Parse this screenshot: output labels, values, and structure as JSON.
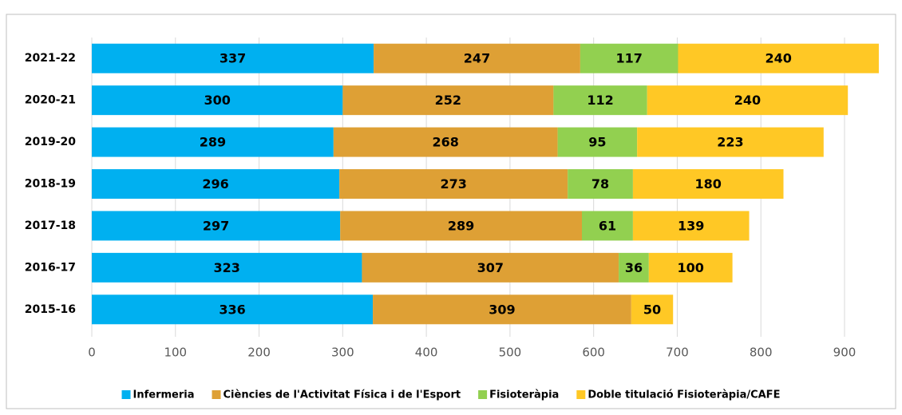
{
  "chart_data": {
    "type": "stacked-bar-horizontal",
    "categories": [
      "2021-22",
      "2020-21",
      "2019-20",
      "2018-19",
      "2017-18",
      "2016-17",
      "2015-16"
    ],
    "series": [
      {
        "name": "Infermeria",
        "color": "#00b0f0",
        "values": [
          337,
          300,
          289,
          296,
          297,
          323,
          336
        ]
      },
      {
        "name": "Ciències de l'Activitat Física i de l'Esport",
        "color": "#dea035",
        "values": [
          247,
          252,
          268,
          273,
          289,
          307,
          309
        ]
      },
      {
        "name": "Fisioteràpia",
        "color": "#92d050",
        "values": [
          117,
          112,
          95,
          78,
          61,
          36,
          null
        ]
      },
      {
        "name": "Doble titulació Fisioteràpia/CAFE",
        "color": "#ffc825",
        "values": [
          240,
          240,
          223,
          180,
          139,
          100,
          50
        ]
      }
    ],
    "xlim": [
      0,
      900
    ],
    "xticks": [
      0,
      100,
      200,
      300,
      400,
      500,
      600,
      700,
      800,
      900
    ],
    "grid": true,
    "legend": "bottom"
  }
}
